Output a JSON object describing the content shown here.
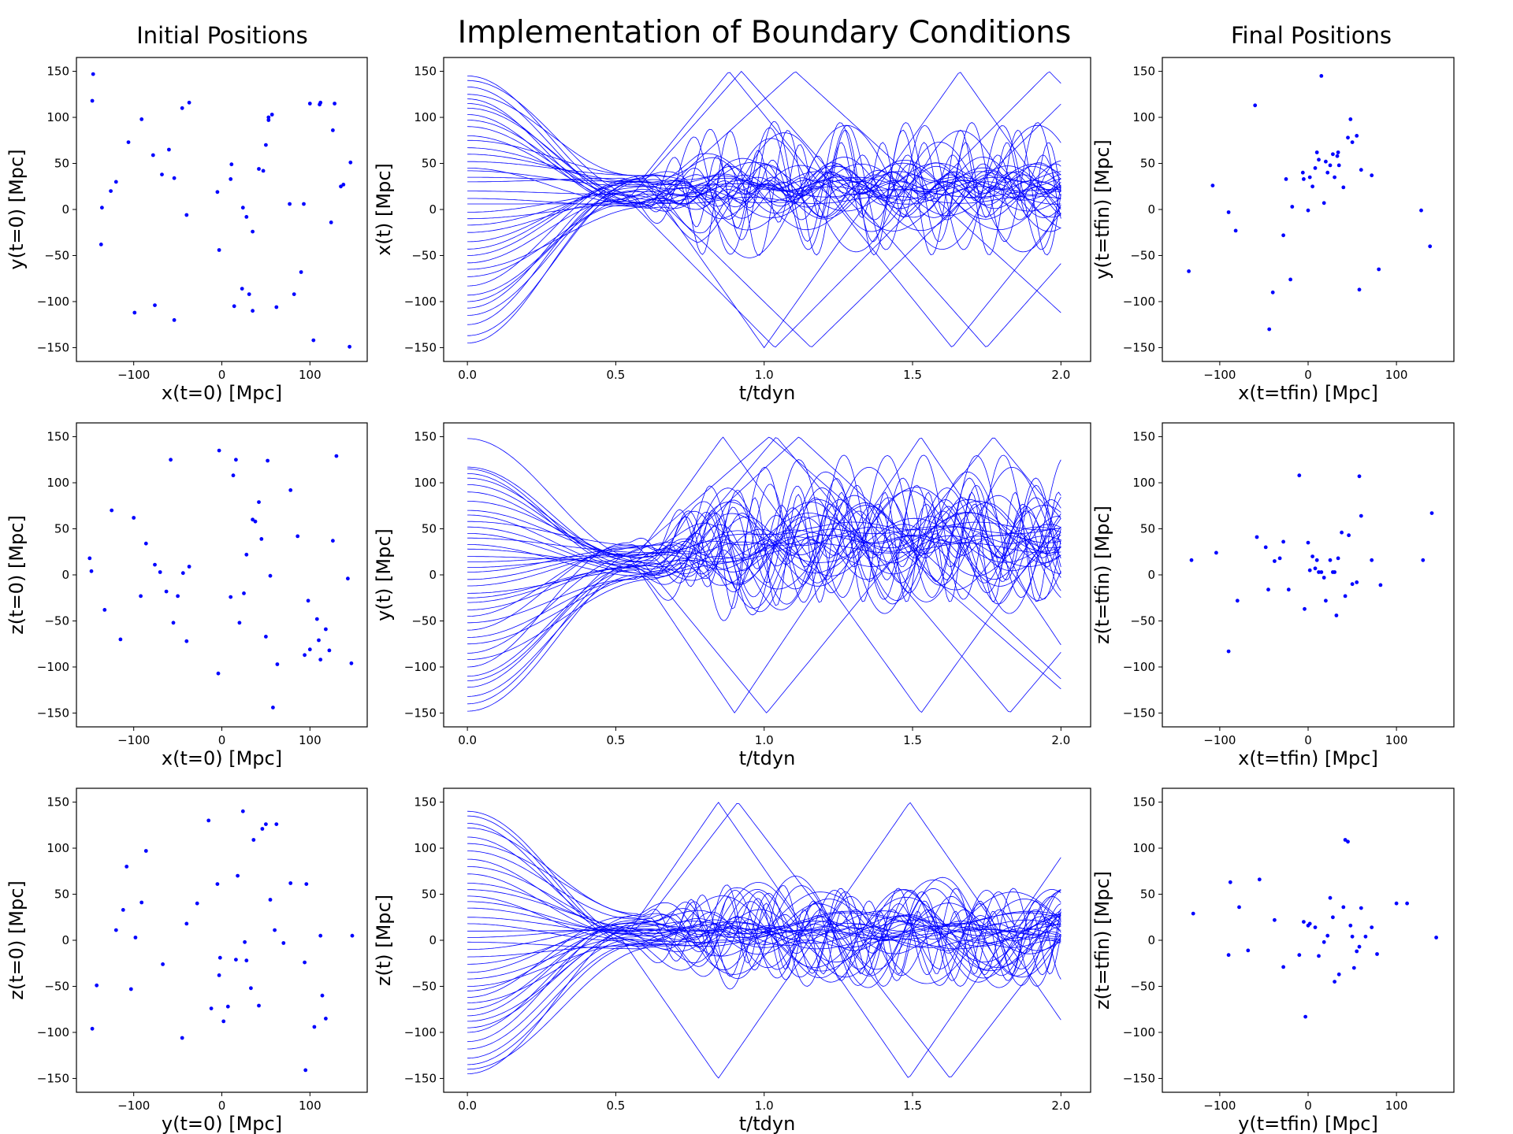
{
  "figure": {
    "title": "Implementation of Boundary Conditions",
    "left_column_title": "Initial Positions",
    "right_column_title": "Final Positions"
  },
  "colors": {
    "marker": "#0000ff",
    "axes": "#000000",
    "background": "#ffffff"
  },
  "chart_data": [
    {
      "id": "init_xy",
      "type": "scatter",
      "xlabel": "x(t=0) [Mpc]",
      "ylabel": "y(t=0) [Mpc]",
      "xlim": [
        -165,
        165
      ],
      "ylim": [
        -165,
        165
      ],
      "xticks": [
        -100,
        0,
        100
      ],
      "yticks": [
        -150,
        -100,
        -50,
        0,
        50,
        100,
        150
      ],
      "x": [
        -146,
        -147,
        -137,
        -136,
        -126,
        -120,
        -106,
        -99,
        -91,
        -78,
        -76,
        -68,
        -60,
        -54,
        -54,
        -45,
        -40,
        -37,
        -3,
        -5,
        10,
        11,
        14,
        23,
        24,
        28,
        31,
        35,
        35,
        42,
        47,
        50,
        53,
        53,
        57,
        62,
        77,
        82,
        90,
        93,
        100,
        104,
        111,
        112,
        124,
        126,
        128,
        135,
        138,
        145,
        146
      ],
      "y": [
        147,
        118,
        -38,
        2,
        20,
        30,
        73,
        -112,
        98,
        59,
        -104,
        38,
        65,
        34,
        -120,
        110,
        -6,
        116,
        -44,
        19,
        33,
        49,
        -105,
        -86,
        2,
        -8,
        -92,
        -110,
        -24,
        44,
        42,
        70,
        97,
        100,
        103,
        -106,
        6,
        -92,
        -68,
        6,
        115,
        -142,
        114,
        116,
        -14,
        86,
        115,
        25,
        27,
        -149,
        51
      ]
    },
    {
      "id": "init_xz",
      "type": "scatter",
      "xlabel": "x(t=0) [Mpc]",
      "ylabel": "z(t=0) [Mpc]",
      "xlim": [
        -165,
        165
      ],
      "ylim": [
        -165,
        165
      ],
      "xticks": [
        -100,
        0,
        100
      ],
      "yticks": [
        -150,
        -100,
        -50,
        0,
        50,
        100,
        150
      ],
      "x": [
        -150,
        -148,
        -133,
        -125,
        -115,
        -100,
        -92,
        -86,
        -76,
        -70,
        -63,
        -58,
        -55,
        -50,
        -44,
        -40,
        -37,
        -4,
        -3,
        10,
        13,
        16,
        20,
        25,
        28,
        35,
        38,
        42,
        45,
        50,
        52,
        55,
        58,
        63,
        78,
        86,
        94,
        98,
        100,
        108,
        110,
        112,
        118,
        122,
        126,
        130,
        143,
        147
      ],
      "y": [
        18,
        4,
        -38,
        70,
        -70,
        62,
        -23,
        34,
        11,
        3,
        -18,
        125,
        -52,
        -23,
        2,
        -72,
        9,
        -107,
        135,
        -24,
        108,
        125,
        -52,
        -20,
        22,
        60,
        58,
        79,
        39,
        -67,
        124,
        -1,
        -144,
        -97,
        92,
        42,
        -87,
        -28,
        -81,
        -48,
        -71,
        -92,
        -59,
        -82,
        37,
        129,
        -4,
        -96
      ]
    },
    {
      "id": "init_yz",
      "type": "scatter",
      "xlabel": "y(t=0) [Mpc]",
      "ylabel": "z(t=0) [Mpc]",
      "xlim": [
        -165,
        165
      ],
      "ylim": [
        -165,
        165
      ],
      "xticks": [
        -100,
        0,
        100
      ],
      "yticks": [
        -150,
        -100,
        -50,
        0,
        50,
        100,
        150
      ],
      "x": [
        -147,
        -142,
        -120,
        -112,
        -108,
        -103,
        -98,
        -91,
        -86,
        -67,
        -45,
        -40,
        -28,
        -15,
        -12,
        -5,
        -3,
        -2,
        2,
        7,
        16,
        18,
        24,
        26,
        28,
        33,
        36,
        42,
        46,
        50,
        55,
        60,
        62,
        70,
        78,
        94,
        95,
        96,
        105,
        112,
        114,
        118,
        148
      ],
      "y": [
        -96,
        -49,
        11,
        33,
        80,
        -53,
        3,
        41,
        97,
        -26,
        -106,
        18,
        40,
        130,
        -74,
        61,
        -38,
        -19,
        -88,
        -72,
        -21,
        70,
        140,
        -2,
        -22,
        -52,
        109,
        -71,
        121,
        126,
        44,
        11,
        126,
        -3,
        62,
        -24,
        -141,
        61,
        -94,
        5,
        -60,
        -85,
        5
      ]
    },
    {
      "id": "final_xy",
      "type": "scatter",
      "xlabel": "x(t=tfin) [Mpc]",
      "ylabel": "y(t=tfin) [Mpc]",
      "xlim": [
        -165,
        165
      ],
      "ylim": [
        -165,
        165
      ],
      "xticks": [
        -100,
        0,
        100
      ],
      "yticks": [
        -150,
        -100,
        -50,
        0,
        50,
        100,
        150
      ],
      "x": [
        -135,
        -108,
        -90,
        -82,
        -60,
        -44,
        -40,
        -28,
        -25,
        -20,
        -18,
        -6,
        -5,
        0,
        2,
        5,
        8,
        10,
        12,
        15,
        18,
        20,
        22,
        25,
        28,
        30,
        33,
        34,
        35,
        40,
        45,
        48,
        50,
        55,
        58,
        60,
        72,
        80,
        128,
        138
      ],
      "y": [
        -67,
        26,
        -3,
        -23,
        113,
        -130,
        -90,
        -28,
        33,
        -76,
        3,
        40,
        33,
        -1,
        35,
        25,
        45,
        62,
        54,
        145,
        7,
        52,
        40,
        48,
        60,
        35,
        58,
        62,
        48,
        24,
        78,
        98,
        73,
        80,
        -87,
        43,
        37,
        -65,
        -1,
        -40
      ]
    },
    {
      "id": "final_xz",
      "type": "scatter",
      "xlabel": "x(t=tfin) [Mpc]",
      "ylabel": "z(t=tfin) [Mpc]",
      "xlim": [
        -165,
        165
      ],
      "ylim": [
        -165,
        165
      ],
      "xticks": [
        -100,
        0,
        100
      ],
      "yticks": [
        -150,
        -100,
        -50,
        0,
        50,
        100,
        150
      ],
      "x": [
        -132,
        -104,
        -90,
        -80,
        -58,
        -48,
        -45,
        -38,
        -32,
        -28,
        -22,
        -10,
        -4,
        0,
        2,
        5,
        8,
        10,
        12,
        15,
        18,
        20,
        25,
        28,
        30,
        32,
        34,
        38,
        42,
        46,
        50,
        55,
        58,
        60,
        72,
        82,
        130,
        140
      ],
      "y": [
        16,
        24,
        -83,
        -28,
        41,
        30,
        -16,
        15,
        18,
        36,
        -16,
        108,
        -37,
        35,
        5,
        20,
        7,
        16,
        3,
        3,
        -3,
        -28,
        16,
        3,
        3,
        -44,
        18,
        46,
        -23,
        43,
        -10,
        -8,
        107,
        64,
        16,
        -11,
        16,
        67
      ]
    },
    {
      "id": "final_yz",
      "type": "scatter",
      "xlabel": "y(t=tfin) [Mpc]",
      "ylabel": "z(t=tfin) [Mpc]",
      "xlim": [
        -165,
        165
      ],
      "ylim": [
        -165,
        165
      ],
      "xticks": [
        -100,
        0,
        100
      ],
      "yticks": [
        -150,
        -100,
        -50,
        0,
        50,
        100,
        150
      ],
      "x": [
        -130,
        -90,
        -88,
        -78,
        -68,
        -55,
        -38,
        -28,
        -10,
        -5,
        -3,
        0,
        2,
        8,
        12,
        18,
        22,
        25,
        28,
        30,
        35,
        40,
        42,
        45,
        48,
        50,
        52,
        55,
        58,
        60,
        65,
        72,
        78,
        100,
        112,
        145
      ],
      "y": [
        29,
        -16,
        63,
        36,
        -11,
        66,
        22,
        -29,
        -16,
        20,
        -83,
        16,
        18,
        14,
        -17,
        -2,
        5,
        46,
        25,
        -45,
        -37,
        36,
        109,
        107,
        16,
        4,
        -30,
        -12,
        -7,
        35,
        4,
        14,
        -15,
        40,
        40,
        3
      ]
    },
    {
      "id": "traj_x",
      "type": "line",
      "xlabel": "t/tdyn",
      "ylabel": "x(t) [Mpc]",
      "xlim": [
        -0.08,
        2.1
      ],
      "ylim": [
        -165,
        165
      ],
      "xticks": [
        0.0,
        0.5,
        1.0,
        1.5,
        2.0
      ],
      "yticks": [
        -150,
        -100,
        -50,
        0,
        50,
        100,
        150
      ],
      "initial": [
        145,
        140,
        133,
        125,
        120,
        115,
        110,
        103,
        97,
        90,
        80,
        75,
        67,
        60,
        52,
        45,
        42,
        35,
        30,
        20,
        12,
        6,
        -3,
        -10,
        -17,
        -25,
        -35,
        -43,
        -50,
        -58,
        -65,
        -73,
        -83,
        -93,
        -100,
        -107,
        -115,
        -125,
        -137,
        -145
      ],
      "converge_t": 0.58,
      "converge_center": 20,
      "late_center": 25,
      "late_amp": 65,
      "boundary": 150,
      "seed": 11
    },
    {
      "id": "traj_y",
      "type": "line",
      "xlabel": "t/tdyn",
      "ylabel": "y(t) [Mpc]",
      "xlim": [
        -0.08,
        2.1
      ],
      "ylim": [
        -165,
        165
      ],
      "xticks": [
        0.0,
        0.5,
        1.0,
        1.5,
        2.0
      ],
      "yticks": [
        -150,
        -100,
        -50,
        0,
        50,
        100,
        150
      ],
      "initial": [
        148,
        117,
        115,
        110,
        105,
        98,
        90,
        80,
        70,
        65,
        58,
        52,
        45,
        40,
        33,
        28,
        20,
        14,
        8,
        3,
        -5,
        -12,
        -20,
        -25,
        -30,
        -38,
        -45,
        -52,
        -60,
        -68,
        -75,
        -85,
        -92,
        -100,
        -110,
        -115,
        -122,
        -132,
        -140,
        -148
      ],
      "converge_t": 0.6,
      "converge_center": 15,
      "late_center": 40,
      "late_amp": 75,
      "boundary": 150,
      "seed": 23
    },
    {
      "id": "traj_z",
      "type": "line",
      "xlabel": "t/tdyn",
      "ylabel": "z(t) [Mpc]",
      "xlim": [
        -0.08,
        2.1
      ],
      "ylim": [
        -165,
        165
      ],
      "xticks": [
        0.0,
        0.5,
        1.0,
        1.5,
        2.0
      ],
      "yticks": [
        -150,
        -100,
        -50,
        0,
        50,
        100,
        150
      ],
      "initial": [
        140,
        135,
        127,
        122,
        112,
        105,
        97,
        88,
        80,
        72,
        62,
        55,
        48,
        42,
        35,
        25,
        18,
        10,
        3,
        -2,
        -10,
        -18,
        -26,
        -35,
        -42,
        -50,
        -55,
        -62,
        -68,
        -75,
        -82,
        -88,
        -95,
        -100,
        -110,
        -118,
        -128,
        -135,
        -140,
        -145
      ],
      "converge_t": 0.58,
      "converge_center": 10,
      "late_center": 10,
      "late_amp": 55,
      "boundary": 150,
      "seed": 37
    }
  ]
}
